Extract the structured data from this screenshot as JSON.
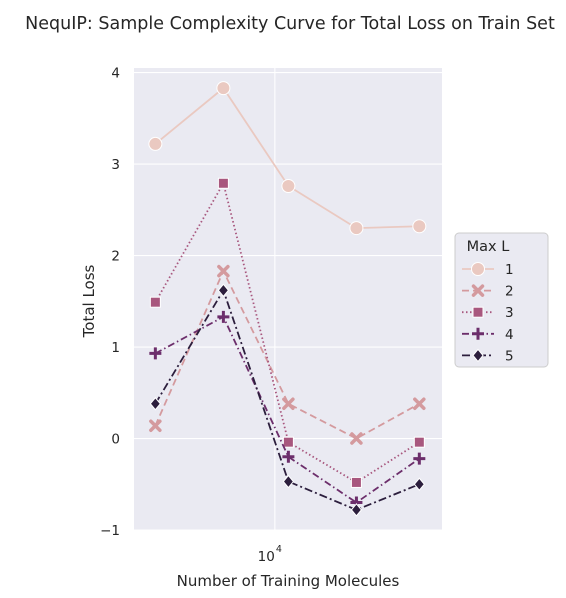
{
  "chart_data": {
    "type": "line",
    "title": "NequIP: Sample Complexity Curve for Total Loss on Train Set",
    "xlabel": "Number of Training Molecules",
    "ylabel": "Total Loss",
    "x_scale": "log",
    "x": [
      2000,
      5000,
      12000,
      30000,
      70000
    ],
    "ylim": [
      -1,
      4.05
    ],
    "y_ticks": [
      -1,
      0,
      1,
      2,
      3,
      4
    ],
    "x_tick_base": "10",
    "x_tick_exponent": "4",
    "grid": true,
    "legend_title": "Max L",
    "legend_placement": "center-right-outside",
    "series": [
      {
        "name": "1",
        "values": [
          3.22,
          3.83,
          2.76,
          2.3,
          2.32
        ],
        "color": "#eac9c1",
        "marker": "circle",
        "dash": ""
      },
      {
        "name": "2",
        "values": [
          0.14,
          1.83,
          0.38,
          0.0,
          0.38
        ],
        "color": "#d49a9e",
        "marker": "x",
        "dash": "7,4"
      },
      {
        "name": "3",
        "values": [
          1.49,
          2.79,
          -0.04,
          -0.48,
          -0.04
        ],
        "color": "#a8577e",
        "marker": "square",
        "dash": "1.5,2.5"
      },
      {
        "name": "4",
        "values": [
          0.93,
          1.33,
          -0.2,
          -0.7,
          -0.22
        ],
        "color": "#6c2e6b",
        "marker": "plus",
        "dash": "7,3,1.5,3"
      },
      {
        "name": "5",
        "values": [
          0.38,
          1.62,
          -0.47,
          -0.78,
          -0.5
        ],
        "color": "#2c1e3d",
        "marker": "diamond",
        "dash": "8,3,2,3"
      }
    ]
  }
}
